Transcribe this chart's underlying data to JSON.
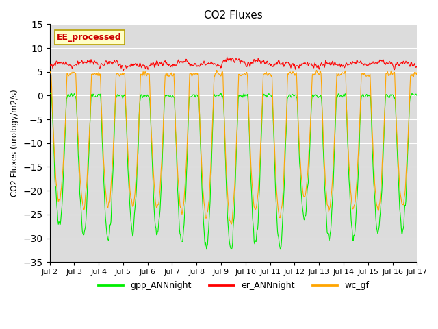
{
  "title": "CO2 Fluxes",
  "ylabel": "CO2 Fluxes (urology/m2/s)",
  "ylim": [
    -35,
    15
  ],
  "yticks": [
    -35,
    -30,
    -25,
    -20,
    -15,
    -10,
    -5,
    0,
    5,
    10,
    15
  ],
  "n_days": 15,
  "points_per_day": 48,
  "annotation_text": "EE_processed",
  "annotation_bg": "#ffffc8",
  "annotation_border": "#b8a000",
  "annotation_text_color": "#cc0000",
  "gpp_color": "#00ee00",
  "er_color": "#ff0000",
  "wc_color": "#ffa500",
  "background_color": "#dcdcdc",
  "legend_labels": [
    "gpp_ANNnight",
    "er_ANNnight",
    "wc_gf"
  ],
  "title_fontsize": 11,
  "gpp_mins": [
    -27,
    -29,
    -30,
    -28,
    -29,
    -31,
    -32,
    -33,
    -31,
    -32,
    -26,
    -30,
    -30,
    -29,
    -28
  ],
  "wc_scale": [
    0.82,
    0.8,
    0.78,
    0.83,
    0.81,
    0.79,
    0.8,
    0.82,
    0.78,
    0.8,
    0.82,
    0.81,
    0.8,
    0.82,
    0.83
  ],
  "er_base": [
    6.0,
    6.5,
    6.2,
    5.8,
    6.1,
    6.3,
    6.0,
    6.8,
    6.5,
    6.2,
    5.9,
    6.1,
    6.3,
    6.5,
    6.2
  ]
}
